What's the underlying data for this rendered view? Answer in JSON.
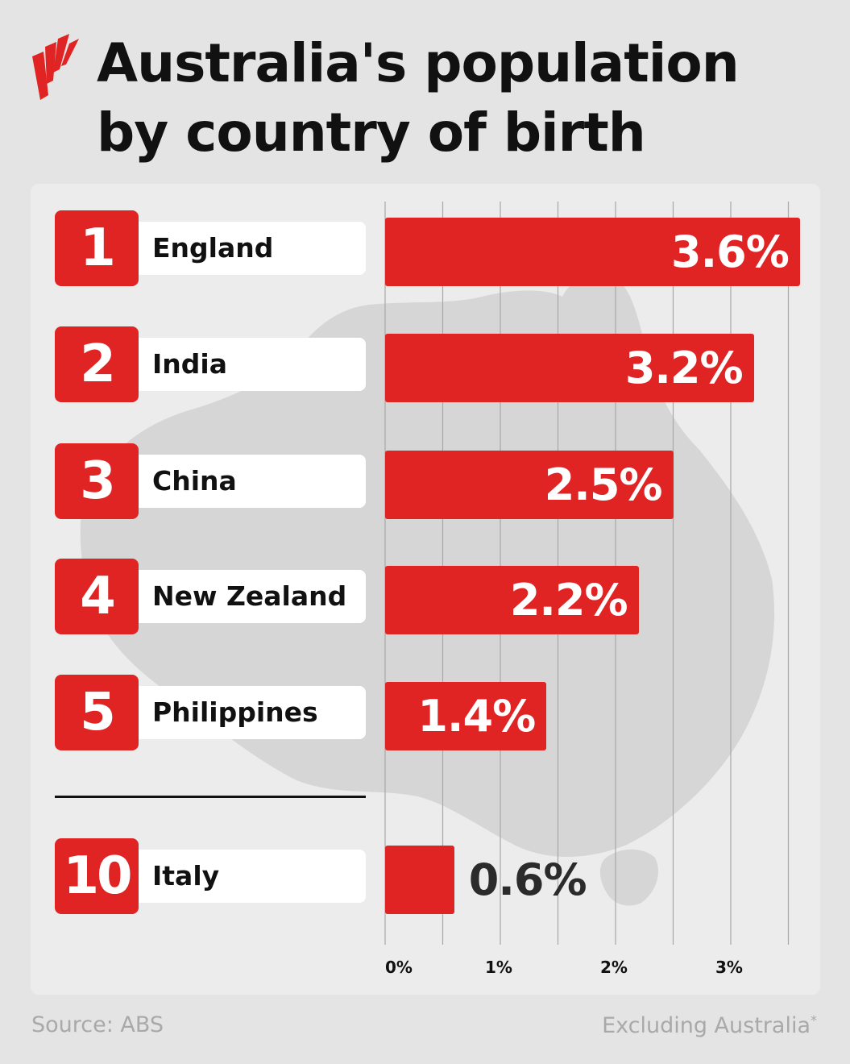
{
  "header": {
    "title": "Australia's population by country of birth"
  },
  "chart_data": {
    "type": "bar",
    "orientation": "horizontal",
    "title": "Australia's population by country of birth",
    "categories": [
      "England",
      "India",
      "China",
      "New Zealand",
      "Philippines",
      "Italy"
    ],
    "ranks": [
      "1",
      "2",
      "3",
      "4",
      "5",
      "10"
    ],
    "values": [
      3.6,
      3.2,
      2.5,
      2.2,
      1.4,
      0.6
    ],
    "value_labels": [
      "3.6%",
      "3.2%",
      "2.5%",
      "2.2%",
      "1.4%",
      "0.6%"
    ],
    "xlim": [
      0,
      3.5
    ],
    "x_ticks": [
      0,
      1,
      2,
      3
    ],
    "x_tick_labels": [
      "0%",
      "1%",
      "2%",
      "3%"
    ],
    "grid": true,
    "bar_color": "#e02424"
  },
  "footer": {
    "source": "Source: ABS",
    "note": "Excluding Australia",
    "note_mark": "*"
  },
  "colors": {
    "background": "#e4e4e4",
    "panel": "#ececec",
    "accent": "#e02424",
    "text": "#111111",
    "muted": "#a9a9a9",
    "map": "#d6d6d6"
  }
}
